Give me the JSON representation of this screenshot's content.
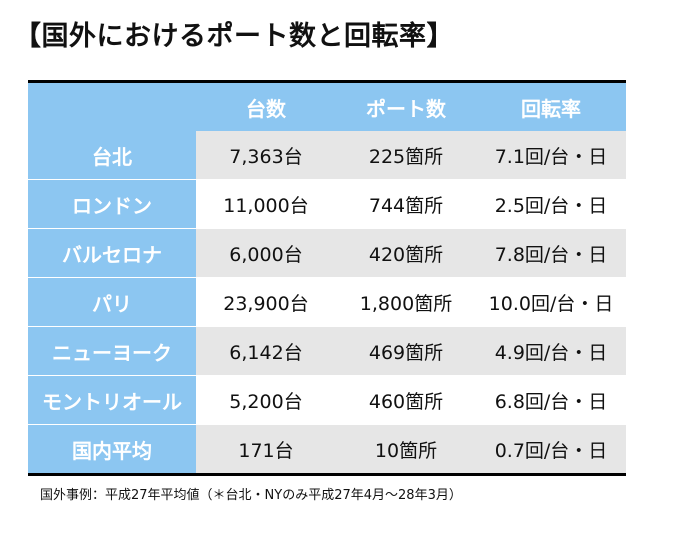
{
  "title": "【国外におけるポート数と回転率】",
  "table": {
    "headers": [
      "",
      "台数",
      "ポート数",
      "回転率"
    ],
    "rows": [
      {
        "city": "台北",
        "units": "7,363台",
        "ports": "225箇所",
        "rate": "7.1回/台・日"
      },
      {
        "city": "ロンドン",
        "units": "11,000台",
        "ports": "744箇所",
        "rate": "2.5回/台・日"
      },
      {
        "city": "バルセロナ",
        "units": "6,000台",
        "ports": "420箇所",
        "rate": "7.8回/台・日"
      },
      {
        "city": "パリ",
        "units": "23,900台",
        "ports": "1,800箇所",
        "rate": "10.0回/台・日"
      },
      {
        "city": "ニューヨーク",
        "units": "6,142台",
        "ports": "469箇所",
        "rate": "4.9回/台・日"
      },
      {
        "city": "モントリオール",
        "units": "5,200台",
        "ports": "460箇所",
        "rate": "6.8回/台・日"
      },
      {
        "city": "国内平均",
        "units": "171台",
        "ports": "10箇所",
        "rate": "0.7回/台・日"
      }
    ]
  },
  "footnote": "国外事例：平成27年平均値（＊台北・NYのみ平成27年4月～28年3月）",
  "colors": {
    "header_bg": "#8cc6f1",
    "header_text": "#ffffff",
    "stripe": "#e6e6e6",
    "rule": "#000000"
  }
}
